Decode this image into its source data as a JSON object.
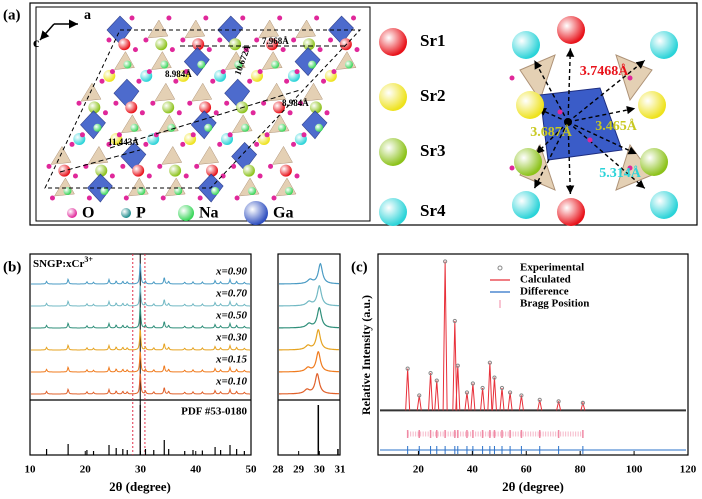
{
  "panel_a": {
    "label": "(a)",
    "axis_a": "a",
    "axis_c": "c",
    "distances": [
      "7.968Å",
      "8.984Å",
      "10.672Å",
      "8.984Å",
      "11.443Å"
    ],
    "atoms": [
      {
        "symbol": "O",
        "color": "#e0289a"
      },
      {
        "symbol": "P",
        "color": "#1e8c8c"
      },
      {
        "symbol": "Na",
        "color": "#39d65a"
      },
      {
        "symbol": "Ga",
        "color": "#3050c0"
      }
    ],
    "sites": [
      {
        "name": "Sr1",
        "color": "#e8121a"
      },
      {
        "name": "Sr2",
        "color": "#eee21c"
      },
      {
        "name": "Sr3",
        "color": "#8cc21a"
      },
      {
        "name": "Sr4",
        "color": "#2ad3d8"
      }
    ],
    "bond_lengths": [
      {
        "text": "3.7468Å",
        "color": "#e8121a"
      },
      {
        "text": "3.687Å",
        "color": "#c8c820"
      },
      {
        "text": "3.465Å",
        "color": "#c8c820"
      },
      {
        "text": "5.314Å",
        "color": "#2ad3d8"
      }
    ]
  },
  "panel_b": {
    "label": "(b)",
    "sample_label": "SNGP:xCr",
    "sample_charge": "3+",
    "reference": "PDF #53-0180",
    "xlabel": "2θ (degree)",
    "xlim": [
      10,
      50
    ],
    "xticks": [
      10,
      20,
      30,
      40,
      50
    ],
    "zoom_xlim": [
      28,
      31
    ],
    "zoom_xticks": [
      28,
      29,
      30,
      31
    ],
    "traces": [
      {
        "name": "x=0.90",
        "color": "#4a9bc4",
        "zoom_peak": 30.05
      },
      {
        "name": "x=0.70",
        "color": "#72b9c4",
        "zoom_peak": 30.0
      },
      {
        "name": "x=0.50",
        "color": "#2f8f7a",
        "zoom_peak": 30.0
      },
      {
        "name": "x=0.30",
        "color": "#e6a320",
        "zoom_peak": 29.95
      },
      {
        "name": "x=0.15",
        "color": "#f07b1e",
        "zoom_peak": 29.95
      },
      {
        "name": "x=0.10",
        "color": "#e0602a",
        "zoom_peak": 29.9
      }
    ],
    "guides": [
      {
        "x": 28.6,
        "color": "#e0304a"
      },
      {
        "x": 29.95,
        "color": "#000000"
      },
      {
        "x": 30.8,
        "color": "#e0304a"
      }
    ],
    "pdf_sticks": {
      "x": [
        13.0,
        16.9,
        20.3,
        21.5,
        24.3,
        25.6,
        26.8,
        27.6,
        29.95,
        30.9,
        32.4,
        34.3,
        35.1,
        38.0,
        39.5,
        41.2,
        43.5,
        44.5,
        46.2,
        47.4,
        48.8
      ],
      "y": [
        0.12,
        0.22,
        0.1,
        0.08,
        0.2,
        0.14,
        0.12,
        0.1,
        1.0,
        0.12,
        0.1,
        0.3,
        0.12,
        0.08,
        0.1,
        0.09,
        0.16,
        0.1,
        0.2,
        0.12,
        0.08
      ]
    }
  },
  "panel_c": {
    "label": "(c)",
    "ylabel": "Relative Intensity (a.u.)",
    "xlabel": "2θ (degree)",
    "xlim": [
      5,
      120
    ],
    "ylim": [
      -0.3,
      1.05
    ],
    "xticks": [
      20,
      40,
      60,
      80,
      100,
      120
    ],
    "legend": [
      {
        "name": "Experimental",
        "color": "#888888"
      },
      {
        "name": "Calculated",
        "color": "#e8303a"
      },
      {
        "name": "Difference",
        "color": "#2a70c8"
      },
      {
        "name": "Bragg Position",
        "color": "#f08aa5"
      }
    ],
    "peaks": {
      "x": [
        16.0,
        20.3,
        24.5,
        26.8,
        29.9,
        33.5,
        34.6,
        38.0,
        40.2,
        43.8,
        46.5,
        48.2,
        51.0,
        54.0,
        58.2,
        65.0,
        72.0,
        81.0
      ],
      "y": [
        0.28,
        0.1,
        0.25,
        0.2,
        1.0,
        0.6,
        0.3,
        0.12,
        0.18,
        0.15,
        0.32,
        0.22,
        0.15,
        0.12,
        0.1,
        0.07,
        0.06,
        0.05
      ]
    }
  }
}
